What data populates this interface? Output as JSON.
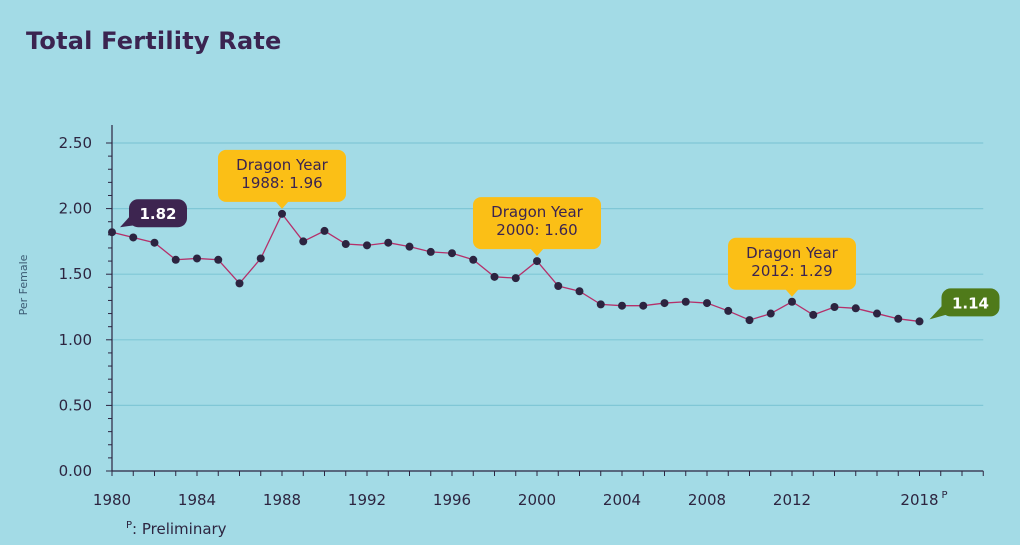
{
  "chart_data": {
    "type": "line",
    "title": "Total Fertility Rate",
    "ylabel": "Per Female",
    "xlabel": "",
    "ylim": [
      0,
      2.5
    ],
    "xlim": [
      1980,
      2021
    ],
    "y_ticks": [
      "0.00",
      "0.50",
      "1.00",
      "1.50",
      "2.00",
      "2.50"
    ],
    "x_ticks": [
      {
        "value": 1980,
        "label": "1980"
      },
      {
        "value": 1984,
        "label": "1984"
      },
      {
        "value": 1988,
        "label": "1988"
      },
      {
        "value": 1992,
        "label": "1992"
      },
      {
        "value": 1996,
        "label": "1996"
      },
      {
        "value": 2000,
        "label": "2000"
      },
      {
        "value": 2004,
        "label": "2004"
      },
      {
        "value": 2008,
        "label": "2008"
      },
      {
        "value": 2012,
        "label": "2012"
      },
      {
        "value": 2018,
        "label": "2018",
        "sup": "P"
      }
    ],
    "grid": true,
    "series": [
      {
        "x": [
          1980,
          1981,
          1982,
          1983,
          1984,
          1985,
          1986,
          1987,
          1988,
          1989,
          1990,
          1991,
          1992,
          1993,
          1994,
          1995,
          1996,
          1997,
          1998,
          1999,
          2000,
          2001,
          2002,
          2003,
          2004,
          2005,
          2006,
          2007,
          2008,
          2009,
          2010,
          2011,
          2012,
          2013,
          2014,
          2015,
          2016,
          2017,
          2018
        ],
        "values": [
          1.82,
          1.78,
          1.74,
          1.61,
          1.62,
          1.61,
          1.43,
          1.62,
          1.96,
          1.75,
          1.83,
          1.73,
          1.72,
          1.74,
          1.71,
          1.67,
          1.66,
          1.61,
          1.48,
          1.47,
          1.6,
          1.41,
          1.37,
          1.27,
          1.26,
          1.26,
          1.28,
          1.29,
          1.28,
          1.22,
          1.15,
          1.2,
          1.29,
          1.19,
          1.25,
          1.24,
          1.2,
          1.16,
          1.14
        ]
      }
    ],
    "annotations": [
      {
        "x": 1988,
        "y": 1.96,
        "lines": [
          "Dragon Year",
          "1988: 1.96"
        ],
        "color": "#fbbf16",
        "textcolor": "#3b2450",
        "kind": "callout"
      },
      {
        "x": 2000,
        "y": 1.6,
        "lines": [
          "Dragon Year",
          "2000: 1.60"
        ],
        "color": "#fbbf16",
        "textcolor": "#3b2450",
        "kind": "callout"
      },
      {
        "x": 2012,
        "y": 1.29,
        "lines": [
          "Dragon Year",
          "2012: 1.29"
        ],
        "color": "#fbbf16",
        "textcolor": "#3b2450",
        "kind": "callout"
      },
      {
        "x": 1980,
        "y": 1.82,
        "lines": [
          "1.82"
        ],
        "color": "#3d2550",
        "textcolor": "#ffffff",
        "kind": "flag-start"
      },
      {
        "x": 2018,
        "y": 1.14,
        "lines": [
          "1.14"
        ],
        "color": "#4f7a1a",
        "textcolor": "#ffffff",
        "kind": "flag-end"
      }
    ],
    "colors": {
      "line": "#b5306a",
      "marker": "#2c2440",
      "grid": "#80c7d6",
      "axis": "#2c2440",
      "text": "#2d2540"
    }
  },
  "footnote": {
    "symbol": "P",
    "text": ": Preliminary"
  }
}
